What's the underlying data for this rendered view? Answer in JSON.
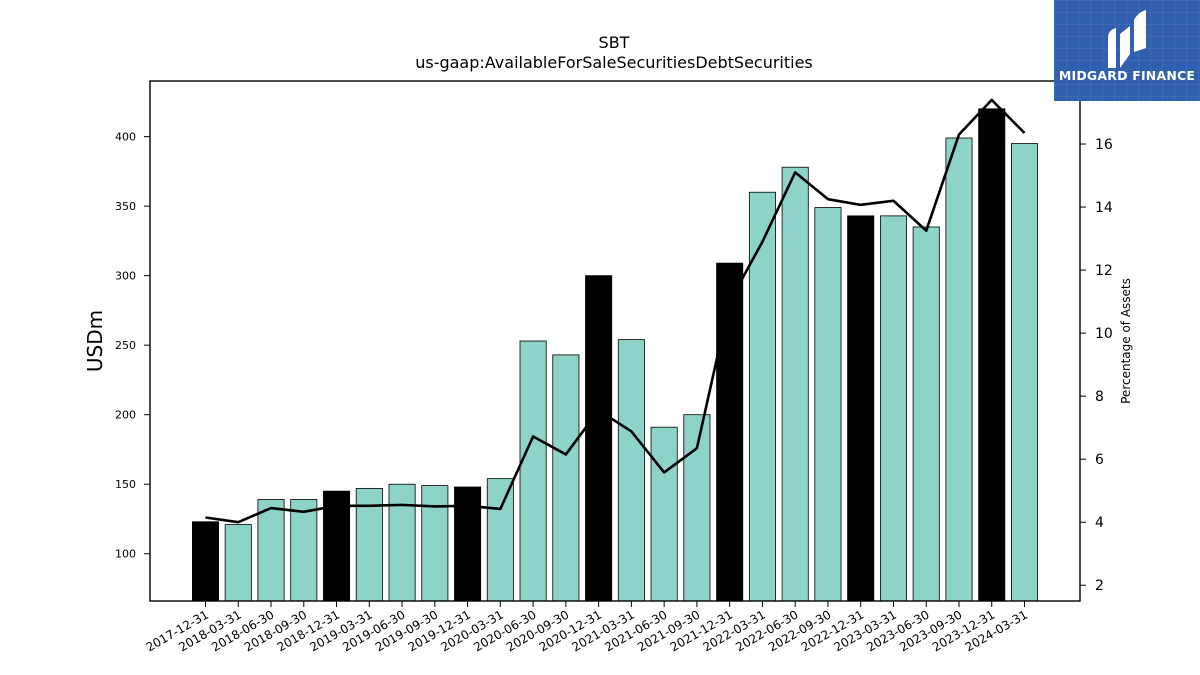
{
  "brand": {
    "name": "MIDGARD FINANCE"
  },
  "chart_data": {
    "type": "bar",
    "title": "SBT",
    "subtitle": "us-gaap:AvailableForSaleSecuritiesDebtSecurities",
    "ylabel": "USDm",
    "y2label": "Percentage of Assets",
    "ylim": [
      66,
      440
    ],
    "y2lim": [
      1.5,
      18.0
    ],
    "yticks": [
      100,
      150,
      200,
      250,
      300,
      350,
      400
    ],
    "y2ticks": [
      2,
      4,
      6,
      8,
      10,
      12,
      14,
      16
    ],
    "categories": [
      "2017-12-31",
      "2018-03-31",
      "2018-06-30",
      "2018-09-30",
      "2018-12-31",
      "2019-03-31",
      "2019-06-30",
      "2019-09-30",
      "2019-12-31",
      "2020-03-31",
      "2020-06-30",
      "2020-09-30",
      "2020-12-31",
      "2021-03-31",
      "2021-06-30",
      "2021-09-30",
      "2021-12-31",
      "2022-03-31",
      "2022-06-30",
      "2022-09-30",
      "2022-12-31",
      "2023-03-31",
      "2023-06-30",
      "2023-09-30",
      "2023-12-31",
      "2024-03-31"
    ],
    "series": [
      {
        "values": [
          123,
          121,
          139,
          139,
          145,
          147,
          150,
          149,
          148,
          154,
          253,
          243,
          300,
          254,
          191,
          200,
          309,
          360,
          378,
          349,
          343,
          343,
          335,
          399,
          420,
          395
        ]
      },
      {
        "axis": "right",
        "type": "line",
        "values": [
          4.15,
          4.0,
          4.45,
          4.33,
          4.52,
          4.52,
          4.55,
          4.5,
          4.52,
          4.42,
          6.72,
          6.15,
          7.55,
          6.88,
          5.58,
          6.35,
          11.0,
          12.9,
          15.1,
          14.25,
          14.07,
          14.2,
          13.25,
          16.3,
          17.4,
          16.35
        ]
      }
    ],
    "year_end_color": "#000000",
    "bar_color": "#8dd3c7",
    "line_color": "#000000",
    "grid": false,
    "legend": "none"
  }
}
